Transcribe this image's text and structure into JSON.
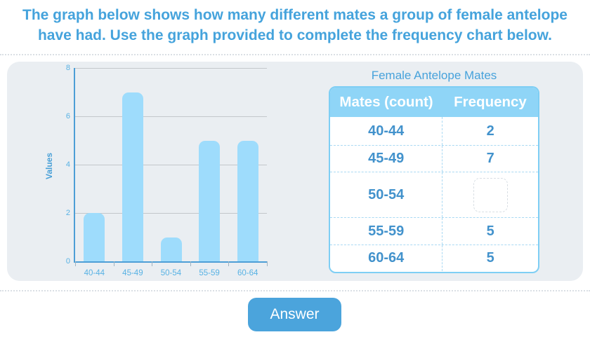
{
  "header": {
    "lines": [
      "The graph below shows how many different mates a group of female antelope",
      "have had. Use the graph provided to complete the frequency chart below."
    ]
  },
  "chart_data": {
    "type": "bar",
    "title": "",
    "categories": [
      "40-44",
      "45-49",
      "50-54",
      "55-59",
      "60-64"
    ],
    "values": [
      2,
      7,
      1,
      5,
      5
    ],
    "xlabel": "",
    "ylabel": "Values",
    "ylim": [
      0,
      8
    ],
    "yticks": [
      0,
      2,
      4,
      6,
      8
    ],
    "grid": true,
    "legend": false,
    "bar_color": "#9edcfc"
  },
  "table": {
    "title": "Female Antelope Mates",
    "columns": [
      "Mates (count)",
      "Frequency"
    ],
    "rows": [
      {
        "label": "40-44",
        "frequency": "2"
      },
      {
        "label": "45-49",
        "frequency": "7"
      },
      {
        "label": "50-54",
        "frequency": "",
        "has_input": true,
        "input_value": ""
      },
      {
        "label": "55-59",
        "frequency": "5"
      },
      {
        "label": "60-64",
        "frequency": "5"
      }
    ]
  },
  "buttons": {
    "answer": "Answer"
  },
  "colors": {
    "accent_blue": "#4ba4dc",
    "prompt_text": "#45a3dc",
    "bar_fill": "#9edcfc",
    "axis_blue": "#4d9ed6",
    "gridline": "#c3c7cb",
    "panel_bg": "#eaeef2",
    "table_header_bg": "#8fd5f7",
    "table_border": "#7ecef4",
    "cell_text": "#4292cc",
    "dashed_separator": "#a9d9f3"
  }
}
